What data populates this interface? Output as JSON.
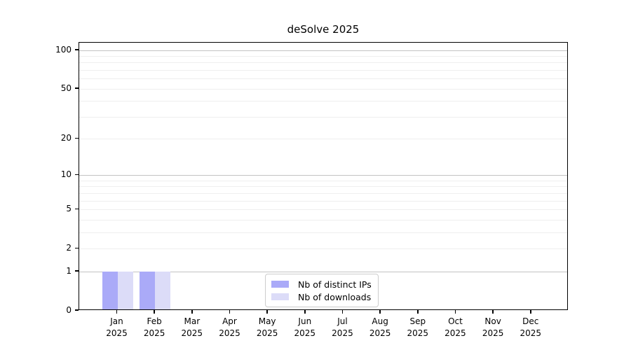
{
  "chart_data": {
    "type": "bar",
    "title": "deSolve 2025",
    "xlabel": "",
    "ylabel": "",
    "yscale": "log1p",
    "ylim": [
      0,
      113
    ],
    "grid": true,
    "categories": [
      "Jan 2025",
      "Feb 2025",
      "Mar 2025",
      "Apr 2025",
      "May 2025",
      "Jun 2025",
      "Jul 2025",
      "Aug 2025",
      "Sep 2025",
      "Oct 2025",
      "Nov 2025",
      "Dec 2025"
    ],
    "series": [
      {
        "name": "Nb of distinct IPs",
        "color": "#aaaaf8",
        "values": [
          1,
          1,
          0,
          0,
          0,
          0,
          0,
          0,
          0,
          0,
          0,
          0
        ]
      },
      {
        "name": "Nb of downloads",
        "color": "#dcdcf8",
        "values": [
          1,
          1,
          0,
          0,
          0,
          0,
          0,
          0,
          0,
          0,
          0,
          0
        ]
      }
    ],
    "yticks": [
      0,
      1,
      2,
      5,
      10,
      20,
      50,
      100
    ],
    "major_gridlines": [
      1,
      10,
      100
    ],
    "minor_gridlines": [
      2,
      3,
      4,
      5,
      6,
      7,
      8,
      9,
      20,
      30,
      40,
      50,
      60,
      70,
      80,
      90
    ],
    "legend_position": "lower center"
  },
  "colors": {
    "axis": "#000000",
    "major_grid": "#c3c3c3",
    "minor_grid": "#efefef",
    "legend_border": "#cccccc",
    "background": "#ffffff"
  }
}
